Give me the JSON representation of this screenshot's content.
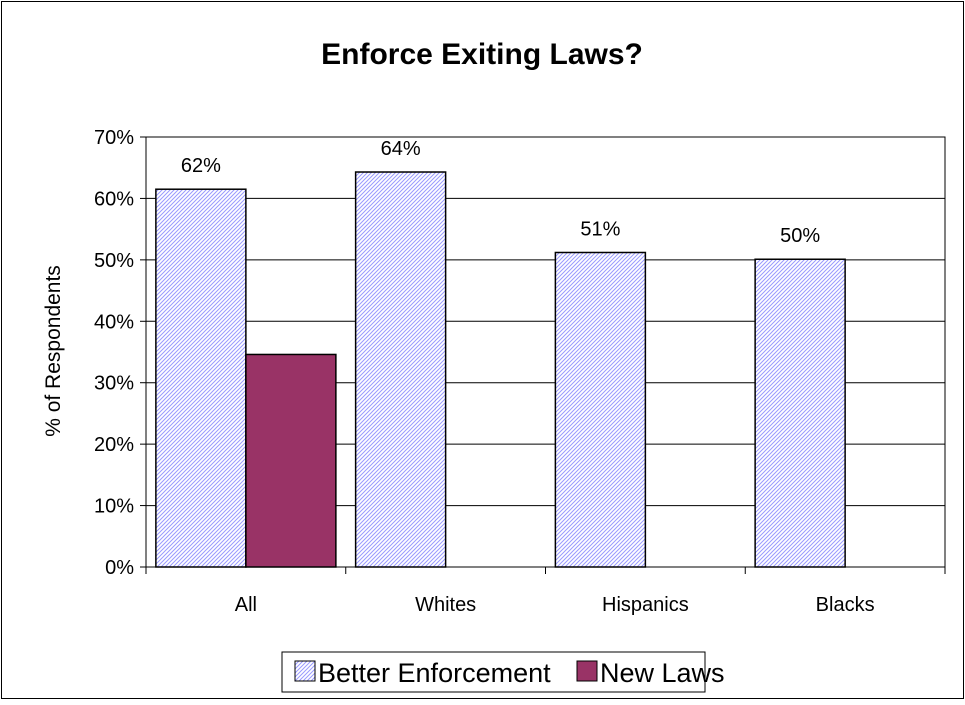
{
  "chart_data": {
    "type": "bar",
    "title": "Enforce Exiting Laws?",
    "xlabel": "",
    "ylabel": "% of Respondents",
    "categories": [
      "All",
      "Whites",
      "Hispanics",
      "Blacks"
    ],
    "ylim": [
      0,
      70
    ],
    "yticks": [
      "0%",
      "10%",
      "20%",
      "30%",
      "40%",
      "50%",
      "60%",
      "70%"
    ],
    "grid": true,
    "legend_position": "bottom",
    "series": [
      {
        "name": "Better Enforcement",
        "values": [
          61.5,
          64.3,
          51.2,
          50.1
        ],
        "data_labels": [
          "62%",
          "64%",
          "51%",
          "50%"
        ],
        "color": "#9999ff",
        "pattern": "diagonal-hatch"
      },
      {
        "name": "New Laws",
        "values": [
          34.6,
          null,
          null,
          null
        ],
        "data_labels": [
          "",
          "",
          "",
          ""
        ],
        "color": "#993366",
        "pattern": "solid"
      }
    ]
  }
}
